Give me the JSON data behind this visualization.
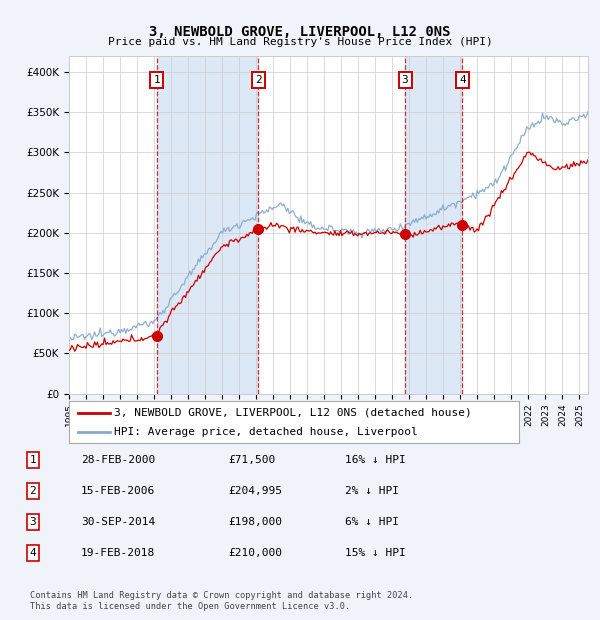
{
  "title": "3, NEWBOLD GROVE, LIVERPOOL, L12 0NS",
  "subtitle": "Price paid vs. HM Land Registry's House Price Index (HPI)",
  "ylabel_ticks": [
    "£0",
    "£50K",
    "£100K",
    "£150K",
    "£200K",
    "£250K",
    "£300K",
    "£350K",
    "£400K"
  ],
  "yvalues": [
    0,
    50000,
    100000,
    150000,
    200000,
    250000,
    300000,
    350000,
    400000
  ],
  "ylim": [
    0,
    420000
  ],
  "xlim_start": 1995.0,
  "xlim_end": 2025.5,
  "background_color": "#f0f4fa",
  "plot_bg": "#ffffff",
  "shade_color": "#dce8f5",
  "sale_year_nums": [
    2000.16,
    2006.12,
    2014.75,
    2018.12
  ],
  "sale_prices": [
    71500,
    204995,
    198000,
    210000
  ],
  "sale_labels": [
    "1",
    "2",
    "3",
    "4"
  ],
  "legend_line1": "3, NEWBOLD GROVE, LIVERPOOL, L12 0NS (detached house)",
  "legend_line2": "HPI: Average price, detached house, Liverpool",
  "table_rows": [
    [
      "1",
      "28-FEB-2000",
      "£71,500",
      "16% ↓ HPI"
    ],
    [
      "2",
      "15-FEB-2006",
      "£204,995",
      "2% ↓ HPI"
    ],
    [
      "3",
      "30-SEP-2014",
      "£198,000",
      "6% ↓ HPI"
    ],
    [
      "4",
      "19-FEB-2018",
      "£210,000",
      "15% ↓ HPI"
    ]
  ],
  "footnote": "Contains HM Land Registry data © Crown copyright and database right 2024.\nThis data is licensed under the Open Government Licence v3.0.",
  "red_color": "#cc0000",
  "blue_color": "#88aacc",
  "vline_color": "#cc0000",
  "grid_color": "#cccccc",
  "label_box_color": "#cc0000",
  "title_fontsize": 10,
  "subtitle_fontsize": 8,
  "tick_fontsize": 7.5,
  "legend_fontsize": 8,
  "table_fontsize": 8
}
